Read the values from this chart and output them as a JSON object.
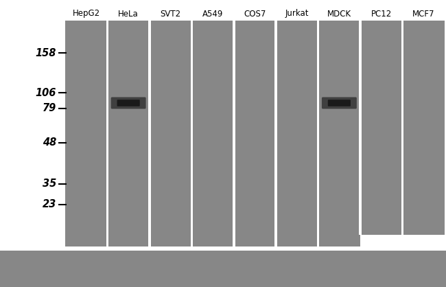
{
  "bg_color": "#ffffff",
  "gel_color": "#878787",
  "sep_color": "#ffffff",
  "bottom_bg": "#878787",
  "lane_labels": [
    "HepG2",
    "HeLa",
    "SVT2",
    "A549",
    "COS7",
    "Jurkat",
    "MDCK",
    "PC12",
    "MCF7"
  ],
  "mw_markers": [
    158,
    106,
    79,
    48,
    35,
    23
  ],
  "band_lanes": [
    1,
    6
  ],
  "band_color_outer": "#3a3a3a",
  "band_color_inner": "#151515",
  "fig_width": 6.5,
  "fig_height": 4.18,
  "dpi": 100,
  "num_lanes": 9,
  "label_fontsize": 8.5,
  "mw_fontsize": 10.5
}
